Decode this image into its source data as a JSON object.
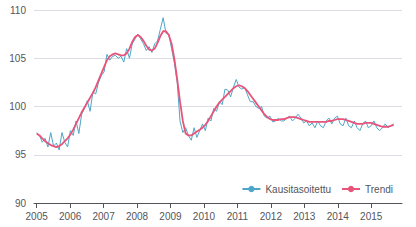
{
  "chart_data": {
    "type": "line",
    "x": [
      2005,
      2005.084,
      2005.168,
      2005.252,
      2005.3361,
      2005.4201,
      2005.5041,
      2005.5881,
      2005.6721,
      2005.7561,
      2005.8402,
      2005.9242,
      2006.0082,
      2006.0922,
      2006.1762,
      2006.2602,
      2006.3443,
      2006.4283,
      2006.5123,
      2006.5963,
      2006.6803,
      2006.7643,
      2006.8483,
      2006.9324,
      2007.0164,
      2007.1004,
      2007.1844,
      2007.2684,
      2007.3524,
      2007.4365,
      2007.5205,
      2007.6045,
      2007.6885,
      2007.7725,
      2007.8565,
      2007.9406,
      2008.0246,
      2008.1086,
      2008.1926,
      2008.2766,
      2008.3606,
      2008.4446,
      2008.5287,
      2008.6127,
      2008.6967,
      2008.7807,
      2008.8647,
      2008.9487,
      2009.0328,
      2009.1168,
      2009.2008,
      2009.2848,
      2009.3688,
      2009.4528,
      2009.5369,
      2009.6209,
      2009.7049,
      2009.7889,
      2009.8729,
      2009.9569,
      2010.0409,
      2010.125,
      2010.209,
      2010.293,
      2010.377,
      2010.461,
      2010.545,
      2010.6291,
      2010.7131,
      2010.7971,
      2010.8811,
      2010.9651,
      2011.0491,
      2011.1331,
      2011.2172,
      2011.3012,
      2011.3852,
      2011.4692,
      2011.5532,
      2011.6372,
      2011.7213,
      2011.8053,
      2011.8893,
      2011.9733,
      2012.0573,
      2012.1413,
      2012.2254,
      2012.3094,
      2012.3934,
      2012.4774,
      2012.5614,
      2012.6454,
      2012.7294,
      2012.8135,
      2012.8975,
      2012.9815,
      2013.0655,
      2013.1495,
      2013.2335,
      2013.3176,
      2013.4016,
      2013.4856,
      2013.5696,
      2013.6536,
      2013.7376,
      2013.8217,
      2013.9057,
      2013.9897,
      2014.0737,
      2014.1577,
      2014.2417,
      2014.3257,
      2014.4098,
      2014.4938,
      2014.5778,
      2014.6618,
      2014.7458,
      2014.8298,
      2014.9139,
      2014.9979,
      2015.0819,
      2015.1659,
      2015.2499,
      2015.3339,
      2015.418,
      2015.502,
      2015.586,
      2015.67
    ],
    "series": [
      {
        "name": "Kausitasoitettu",
        "color": "#4da6c8",
        "values": [
          97.3,
          97.0,
          96.3,
          96.7,
          95.8,
          97.3,
          95.9,
          96.2,
          95.5,
          97.3,
          96.3,
          95.8,
          97.5,
          97.0,
          98.5,
          97.2,
          99.2,
          99.8,
          100.6,
          99.5,
          101.5,
          101.3,
          102.5,
          103.2,
          103.6,
          105.4,
          104.8,
          105.2,
          105.3,
          105.0,
          105.2,
          104.6,
          106.0,
          105.0,
          106.5,
          107.0,
          107.5,
          107.0,
          106.5,
          105.8,
          106.2,
          105.6,
          106.5,
          106.8,
          108.0,
          109.2,
          107.6,
          107.5,
          106.0,
          104.5,
          102.5,
          98.5,
          97.3,
          97.8,
          97.0,
          96.5,
          97.8,
          96.8,
          97.5,
          98.2,
          97.5,
          98.8,
          98.5,
          99.8,
          99.5,
          100.5,
          100.2,
          101.8,
          101.7,
          101.0,
          102.0,
          102.8,
          102.0,
          101.8,
          102.0,
          101.2,
          100.5,
          100.5,
          100.0,
          99.8,
          100.0,
          99.0,
          98.8,
          99.0,
          98.4,
          98.5,
          98.8,
          98.5,
          98.5,
          98.8,
          99.0,
          98.5,
          98.8,
          99.2,
          98.8,
          98.3,
          98.5,
          98.0,
          98.3,
          97.8,
          98.5,
          98.0,
          97.8,
          98.5,
          98.8,
          98.2,
          98.8,
          99.0,
          98.2,
          98.0,
          98.8,
          98.0,
          97.8,
          98.5,
          97.8,
          97.5,
          98.2,
          98.5,
          97.8,
          98.0,
          98.5,
          97.8,
          97.5,
          97.8,
          98.2,
          97.8,
          98.0,
          98.2
        ]
      },
      {
        "name": "Trendi",
        "color": "#e8547a",
        "values": [
          97.2,
          97.0,
          96.7,
          96.4,
          96.2,
          96.0,
          95.9,
          95.8,
          95.9,
          96.1,
          96.4,
          96.7,
          97.1,
          97.6,
          98.2,
          98.8,
          99.4,
          99.9,
          100.4,
          100.9,
          101.4,
          102.0,
          102.7,
          103.4,
          104.1,
          104.8,
          105.2,
          105.4,
          105.5,
          105.4,
          105.3,
          105.3,
          105.5,
          106.0,
          106.7,
          107.2,
          107.4,
          107.2,
          106.8,
          106.3,
          105.9,
          105.8,
          106.0,
          106.6,
          107.3,
          107.8,
          107.8,
          107.4,
          106.5,
          104.9,
          102.8,
          100.5,
          98.5,
          97.2,
          97.0,
          97.0,
          97.2,
          97.4,
          97.6,
          97.8,
          98.1,
          98.5,
          99.0,
          99.5,
          100.0,
          100.4,
          100.7,
          101.0,
          101.3,
          101.6,
          101.9,
          102.1,
          102.2,
          102.1,
          101.9,
          101.6,
          101.2,
          100.8,
          100.4,
          100.0,
          99.6,
          99.2,
          98.9,
          98.7,
          98.6,
          98.6,
          98.6,
          98.7,
          98.7,
          98.8,
          98.9,
          98.9,
          98.9,
          98.8,
          98.7,
          98.6,
          98.5,
          98.4,
          98.4,
          98.4,
          98.4,
          98.4,
          98.4,
          98.4,
          98.5,
          98.5,
          98.6,
          98.7,
          98.7,
          98.7,
          98.6,
          98.5,
          98.4,
          98.3,
          98.2,
          98.2,
          98.2,
          98.3,
          98.3,
          98.3,
          98.2,
          98.1,
          98.0,
          97.9,
          97.9,
          97.9,
          98.0,
          98.1
        ]
      }
    ],
    "xlim": [
      2004.92,
      2015.92
    ],
    "xticks": [
      2005,
      2006,
      2007,
      2008,
      2009,
      2010,
      2011,
      2012,
      2013,
      2014,
      2015
    ],
    "ylim": [
      90,
      110
    ],
    "yticks": [
      90,
      95,
      100,
      105,
      110
    ],
    "grid": true,
    "legend": "lower right"
  }
}
